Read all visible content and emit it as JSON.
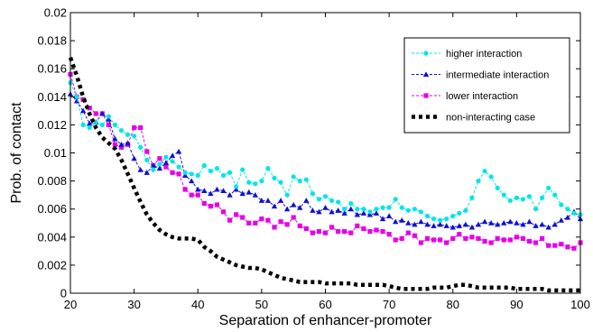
{
  "chart_data": {
    "type": "line",
    "xlabel": "Separation of enhancer-promoter",
    "ylabel": "Prob. of contact",
    "xlim": [
      20,
      100
    ],
    "ylim": [
      0,
      0.02
    ],
    "xticks": [
      20,
      30,
      40,
      50,
      60,
      70,
      80,
      90,
      100
    ],
    "yticks": [
      0,
      0.002,
      0.004,
      0.006,
      0.008,
      0.01,
      0.012,
      0.014,
      0.016,
      0.018,
      0.02
    ],
    "grid": false,
    "legend_position": "top-right",
    "series": [
      {
        "name": "higher interaction",
        "color": "#00e5e5",
        "marker": "circle",
        "x": [
          20,
          21,
          22,
          23,
          24,
          25,
          26,
          27,
          28,
          29,
          30,
          31,
          32,
          33,
          34,
          35,
          36,
          37,
          38,
          39,
          40,
          41,
          42,
          43,
          44,
          45,
          46,
          47,
          48,
          49,
          50,
          51,
          52,
          53,
          54,
          55,
          56,
          57,
          58,
          59,
          60,
          61,
          62,
          63,
          64,
          65,
          66,
          67,
          68,
          69,
          70,
          71,
          72,
          73,
          74,
          75,
          76,
          77,
          78,
          79,
          80,
          81,
          82,
          83,
          84,
          85,
          86,
          87,
          88,
          89,
          90,
          91,
          92,
          93,
          94,
          95,
          96,
          97,
          98,
          99,
          100
        ],
        "y": [
          0.015,
          0.014,
          0.012,
          0.0118,
          0.0122,
          0.012,
          0.0126,
          0.012,
          0.0116,
          0.0113,
          0.0112,
          0.0104,
          0.0095,
          0.0088,
          0.0092,
          0.0097,
          0.0094,
          0.009,
          0.0086,
          0.0085,
          0.0084,
          0.0091,
          0.0087,
          0.0089,
          0.0084,
          0.0086,
          0.0076,
          0.0088,
          0.0079,
          0.0078,
          0.008,
          0.0089,
          0.0082,
          0.0079,
          0.007,
          0.0083,
          0.008,
          0.0081,
          0.0071,
          0.0067,
          0.0069,
          0.0066,
          0.0065,
          0.006,
          0.0064,
          0.006,
          0.006,
          0.0058,
          0.006,
          0.0061,
          0.0061,
          0.0067,
          0.0061,
          0.0059,
          0.006,
          0.0058,
          0.0055,
          0.0053,
          0.0052,
          0.0053,
          0.0055,
          0.0057,
          0.0059,
          0.0068,
          0.008,
          0.0087,
          0.0083,
          0.0075,
          0.007,
          0.0066,
          0.0068,
          0.0067,
          0.0069,
          0.006,
          0.0068,
          0.0075,
          0.007,
          0.0063,
          0.006,
          0.0057,
          0.0056
        ]
      },
      {
        "name": "intermediate interaction",
        "color": "#1010d0",
        "marker": "triangle",
        "x": [
          20,
          21,
          22,
          23,
          24,
          25,
          26,
          27,
          28,
          29,
          30,
          31,
          32,
          33,
          34,
          35,
          36,
          37,
          38,
          39,
          40,
          41,
          42,
          43,
          44,
          45,
          46,
          47,
          48,
          49,
          50,
          51,
          52,
          53,
          54,
          55,
          56,
          57,
          58,
          59,
          60,
          61,
          62,
          63,
          64,
          65,
          66,
          67,
          68,
          69,
          70,
          71,
          72,
          73,
          74,
          75,
          76,
          77,
          78,
          79,
          80,
          81,
          82,
          83,
          84,
          85,
          86,
          87,
          88,
          89,
          90,
          91,
          92,
          93,
          94,
          95,
          96,
          97,
          98,
          99,
          100
        ],
        "y": [
          0.0142,
          0.0137,
          0.013,
          0.0121,
          0.0122,
          0.0128,
          0.0124,
          0.011,
          0.0106,
          0.0107,
          0.0096,
          0.0088,
          0.0086,
          0.0091,
          0.0089,
          0.0093,
          0.0098,
          0.0101,
          0.0084,
          0.008,
          0.0074,
          0.0073,
          0.0071,
          0.0074,
          0.0073,
          0.007,
          0.0074,
          0.0071,
          0.0072,
          0.007,
          0.0066,
          0.0066,
          0.0062,
          0.0066,
          0.006,
          0.0063,
          0.0061,
          0.0066,
          0.0059,
          0.0058,
          0.0061,
          0.0058,
          0.0059,
          0.0057,
          0.006,
          0.0056,
          0.0057,
          0.0056,
          0.0057,
          0.0053,
          0.0055,
          0.0051,
          0.0052,
          0.005,
          0.0049,
          0.0051,
          0.0049,
          0.0048,
          0.0049,
          0.0048,
          0.0047,
          0.0048,
          0.0049,
          0.0047,
          0.0049,
          0.0051,
          0.005,
          0.0049,
          0.005,
          0.0051,
          0.005,
          0.0049,
          0.0051,
          0.0048,
          0.0049,
          0.0047,
          0.0049,
          0.0052,
          0.0054,
          0.0058,
          0.0053
        ]
      },
      {
        "name": "lower interaction",
        "color": "#e600e6",
        "marker": "square",
        "x": [
          20,
          21,
          22,
          23,
          24,
          25,
          26,
          27,
          28,
          29,
          30,
          31,
          32,
          33,
          34,
          35,
          36,
          37,
          38,
          39,
          40,
          41,
          42,
          43,
          44,
          45,
          46,
          47,
          48,
          49,
          50,
          51,
          52,
          53,
          54,
          55,
          56,
          57,
          58,
          59,
          60,
          61,
          62,
          63,
          64,
          65,
          66,
          67,
          68,
          69,
          70,
          71,
          72,
          73,
          74,
          75,
          76,
          77,
          78,
          79,
          80,
          81,
          82,
          83,
          84,
          85,
          86,
          87,
          88,
          89,
          90,
          91,
          92,
          93,
          94,
          95,
          96,
          97,
          98,
          99,
          100
        ],
        "y": [
          0.0156,
          0.014,
          0.0138,
          0.0132,
          0.0128,
          0.0128,
          0.012,
          0.0106,
          0.0104,
          0.0106,
          0.0118,
          0.0118,
          0.0101,
          0.0091,
          0.0096,
          0.009,
          0.0086,
          0.0085,
          0.0074,
          0.007,
          0.007,
          0.0064,
          0.0062,
          0.0063,
          0.0058,
          0.0052,
          0.0056,
          0.0054,
          0.005,
          0.005,
          0.0053,
          0.0052,
          0.0047,
          0.0051,
          0.0049,
          0.0054,
          0.0048,
          0.0046,
          0.0043,
          0.0044,
          0.0043,
          0.0047,
          0.0044,
          0.0044,
          0.0043,
          0.0048,
          0.0046,
          0.0044,
          0.0045,
          0.0044,
          0.0042,
          0.0038,
          0.0039,
          0.0043,
          0.0041,
          0.0036,
          0.0039,
          0.0038,
          0.0038,
          0.0036,
          0.0039,
          0.0042,
          0.0039,
          0.004,
          0.0039,
          0.0037,
          0.0036,
          0.0039,
          0.0038,
          0.0038,
          0.004,
          0.0039,
          0.0037,
          0.0036,
          0.0039,
          0.0034,
          0.0034,
          0.0035,
          0.0033,
          0.0032,
          0.0036
        ]
      },
      {
        "name": "non-interacting case",
        "color": "#000000",
        "marker": "none",
        "x": [
          20,
          21,
          22,
          23,
          24,
          25,
          26,
          27,
          28,
          29,
          30,
          31,
          32,
          33,
          34,
          35,
          36,
          37,
          38,
          39,
          40,
          41,
          42,
          43,
          44,
          45,
          46,
          47,
          48,
          49,
          50,
          51,
          52,
          53,
          54,
          55,
          56,
          57,
          58,
          59,
          60,
          61,
          62,
          63,
          64,
          65,
          66,
          67,
          68,
          69,
          70,
          71,
          72,
          73,
          74,
          75,
          76,
          77,
          78,
          79,
          80,
          81,
          82,
          83,
          84,
          85,
          86,
          87,
          88,
          89,
          90,
          91,
          92,
          93,
          94,
          95,
          96,
          97,
          98,
          99,
          100
        ],
        "y": [
          0.0168,
          0.0155,
          0.014,
          0.0128,
          0.0118,
          0.0111,
          0.0107,
          0.0103,
          0.0095,
          0.0085,
          0.0075,
          0.0065,
          0.0056,
          0.005,
          0.0045,
          0.0042,
          0.004,
          0.0039,
          0.0039,
          0.0039,
          0.0038,
          0.0033,
          0.003,
          0.0026,
          0.0024,
          0.0022,
          0.002,
          0.0019,
          0.0018,
          0.0018,
          0.0017,
          0.0015,
          0.0013,
          0.0011,
          0.001,
          0.0009,
          0.0008,
          0.0008,
          0.0008,
          0.0008,
          0.0007,
          0.0007,
          0.0007,
          0.0007,
          0.0007,
          0.0006,
          0.0006,
          0.0006,
          0.0006,
          0.0006,
          0.0005,
          0.0004,
          0.0003,
          0.0003,
          0.0003,
          0.0003,
          0.0003,
          0.0004,
          0.0004,
          0.0004,
          0.0005,
          0.0006,
          0.0006,
          0.0005,
          0.0004,
          0.0004,
          0.0004,
          0.0004,
          0.0004,
          0.0004,
          0.0003,
          0.0003,
          0.0003,
          0.0003,
          0.0003,
          0.0002,
          0.0002,
          0.0002,
          0.0002,
          0.0002,
          0.0002
        ]
      }
    ]
  }
}
